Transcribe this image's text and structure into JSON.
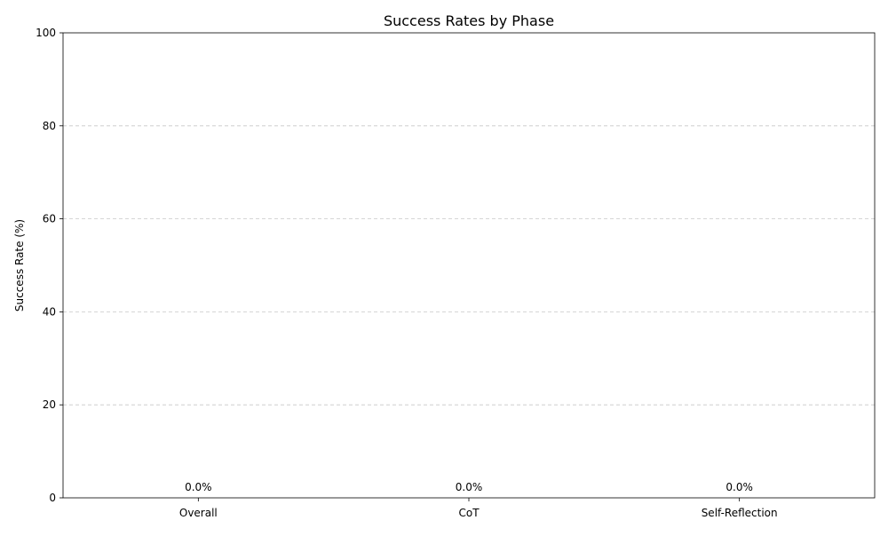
{
  "chart_data": {
    "type": "bar",
    "title": "Success Rates by Phase",
    "xlabel": "",
    "ylabel": "Success Rate (%)",
    "categories": [
      "Overall",
      "CoT",
      "Self-Reflection"
    ],
    "values": [
      0.0,
      0.0,
      0.0
    ],
    "value_labels": [
      "0.0%",
      "0.0%",
      "0.0%"
    ],
    "ylim": [
      0,
      100
    ],
    "yticks": [
      0,
      20,
      40,
      60,
      80,
      100
    ],
    "ytick_labels": [
      "0",
      "20",
      "40",
      "60",
      "80",
      "100"
    ],
    "grid": "y-dashed",
    "bar_color": "#4c72b0",
    "grid_color": "#c8c8c8"
  }
}
